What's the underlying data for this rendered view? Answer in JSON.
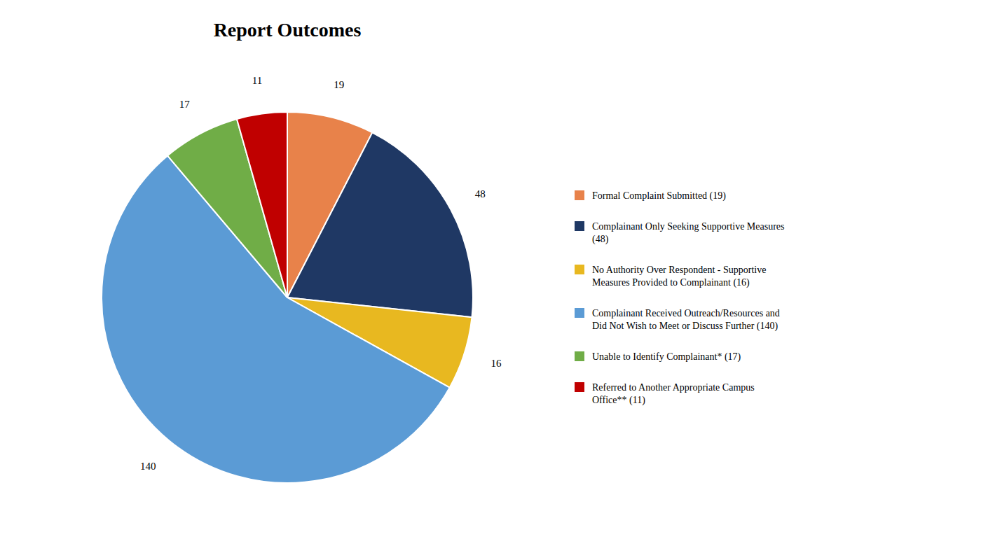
{
  "chart_data": {
    "type": "pie",
    "title": "Report Outcomes",
    "categories": [
      "Formal Complaint Submitted (19)",
      "Complainant Only Seeking Supportive Measures\n(48)",
      "No Authority Over Respondent - Supportive\nMeasures Provided to Complainant (16)",
      "Complainant Received Outreach/Resources and\nDid Not Wish to Meet or Discuss Further (140)",
      "Unable to Identify Complainant* (17)",
      "Referred to Another Appropriate Campus\nOffice** (11)"
    ],
    "values": [
      19,
      48,
      16,
      140,
      17,
      11
    ],
    "colors": [
      "#E8824A",
      "#1F3864",
      "#E8B820",
      "#5B9BD5",
      "#70AD47",
      "#C00000"
    ],
    "data_labels": true,
    "legend": "right"
  }
}
